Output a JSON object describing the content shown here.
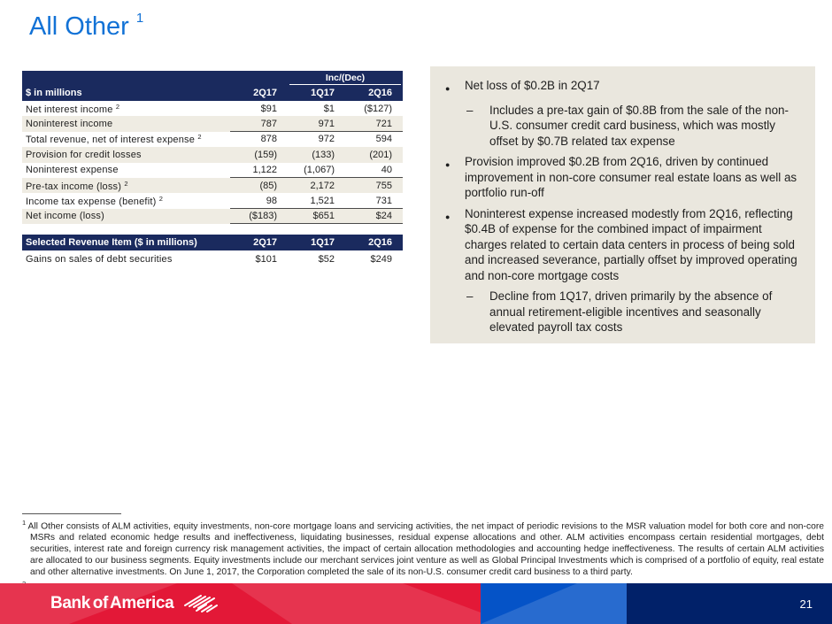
{
  "colors": {
    "title_blue": "#1272D6",
    "header_navy": "#1A2A5E",
    "row_beige": "#EFECE3",
    "panel_beige": "#EAE7DE",
    "footer_red": "#E31837",
    "footer_blue": "#0553C7",
    "footer_navy": "#012169"
  },
  "slide": {
    "title": "All Other",
    "title_superscript": "1"
  },
  "income_table": {
    "inc_dec_label": "Inc/(Dec)",
    "label_header": "$ in millions",
    "columns": [
      "2Q17",
      "1Q17",
      "2Q16"
    ],
    "rows": [
      {
        "label": "Net interest income",
        "sup": "2",
        "values": [
          "$91",
          "$1",
          "($127)"
        ],
        "shaded": false,
        "underline": false
      },
      {
        "label": "Noninterest income",
        "sup": "",
        "values": [
          "787",
          "971",
          "721"
        ],
        "shaded": true,
        "underline": true
      },
      {
        "label": "Total revenue, net of interest expense",
        "sup": "2",
        "values": [
          "878",
          "972",
          "594"
        ],
        "shaded": false,
        "underline": false
      },
      {
        "label": "Provision for credit losses",
        "sup": "",
        "values": [
          "(159)",
          "(133)",
          "(201)"
        ],
        "shaded": true,
        "underline": false
      },
      {
        "label": "Noninterest expense",
        "sup": "",
        "values": [
          "1,122",
          "(1,067)",
          "40"
        ],
        "shaded": false,
        "underline": true
      },
      {
        "label": "Pre-tax income (loss)",
        "sup": "2",
        "values": [
          "(85)",
          "2,172",
          "755"
        ],
        "shaded": true,
        "underline": false
      },
      {
        "label": "Income tax expense (benefit)",
        "sup": "2",
        "values": [
          "98",
          "1,521",
          "731"
        ],
        "shaded": false,
        "underline": true
      },
      {
        "label": "Net income (loss)",
        "sup": "",
        "values": [
          "($183)",
          "$651",
          "$24"
        ],
        "shaded": true,
        "underline": true
      }
    ]
  },
  "revenue_table": {
    "header_label": "Selected Revenue Item ($ in millions)",
    "columns": [
      "2Q17",
      "1Q17",
      "2Q16"
    ],
    "rows": [
      {
        "label": "Gains on sales of debt securities",
        "values": [
          "$101",
          "$52",
          "$249"
        ]
      }
    ]
  },
  "commentary": {
    "bullets": [
      {
        "level": 1,
        "text": "Net loss of $0.2B in 2Q17"
      },
      {
        "level": 2,
        "text": "Includes a pre-tax gain of $0.8B from the sale of the non-U.S. consumer credit card business, which was mostly offset by $0.7B related tax expense"
      },
      {
        "level": 1,
        "text": "Provision improved $0.2B from 2Q16, driven by continued improvement in non-core consumer real estate loans as well as portfolio run-off"
      },
      {
        "level": 1,
        "text": "Noninterest expense increased modestly from 2Q16, reflecting $0.4B of expense for the combined impact of impairment charges related to certain data centers in process of being sold and increased severance, partially offset by improved operating and non-core mortgage costs"
      },
      {
        "level": 2,
        "text": "Decline from 1Q17, driven primarily by the absence of annual retirement-eligible incentives and seasonally elevated payroll tax costs"
      }
    ]
  },
  "footnotes": [
    {
      "marker": "1",
      "text": "All Other consists of ALM activities, equity investments, non-core mortgage loans and servicing activities, the net impact of periodic revisions to the MSR valuation model for both core and non-core MSRs and related economic hedge results and ineffectiveness, liquidating businesses, residual expense allocations and other. ALM activities encompass certain residential mortgages, debt securities, interest rate and foreign currency risk management activities, the impact of certain allocation methodologies and accounting hedge ineffectiveness. The results of certain ALM activities are allocated to our business segments. Equity investments include our merchant services joint venture as well as Global Principal Investments which is comprised of a portfolio of equity, real estate and other alternative investments. On June 1, 2017, the Corporation completed the sale of its non-U.S. consumer credit card business to a third party."
    },
    {
      "marker": "2",
      "text": "FTE basis."
    }
  ],
  "footer": {
    "logo_text": "Bank of America",
    "page_number": "21"
  }
}
